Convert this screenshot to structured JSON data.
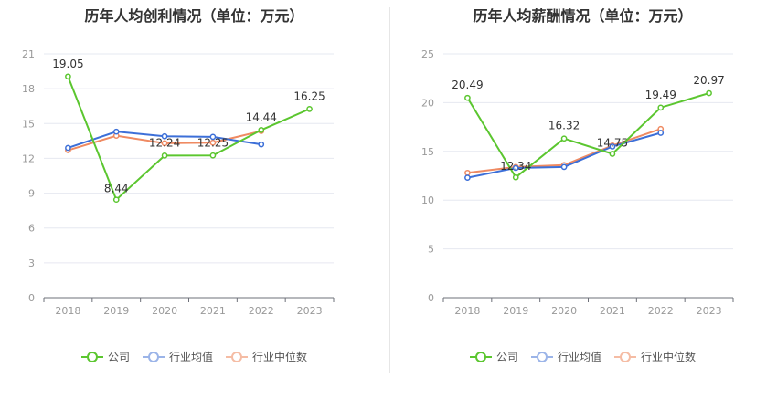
{
  "legend": [
    {
      "label": "公司",
      "color": "#5bc62f"
    },
    {
      "label": "行业均值",
      "color": "#3c6fd8"
    },
    {
      "label": "行业中位数",
      "color": "#ef8a62"
    }
  ],
  "chart_data": [
    {
      "type": "line",
      "title": "历年人均创利情况（单位：万元）",
      "categories": [
        "2018",
        "2019",
        "2020",
        "2021",
        "2022",
        "2023"
      ],
      "yticks": [
        "0",
        "3",
        "6",
        "9",
        "12",
        "15",
        "18",
        "21"
      ],
      "ylim": [
        0,
        21
      ],
      "grid": true,
      "legend_position": "bottom",
      "series": [
        {
          "name": "公司",
          "color": "#5bc62f",
          "values": [
            19.05,
            8.44,
            12.24,
            12.25,
            14.44,
            16.25
          ],
          "labels": [
            "19.05",
            "8.44",
            "12.24",
            "12.25",
            "14.44",
            "16.25"
          ]
        },
        {
          "name": "行业均值",
          "color": "#3c6fd8",
          "values": [
            12.9,
            14.3,
            13.9,
            13.85,
            13.2,
            null
          ]
        },
        {
          "name": "行业中位数",
          "color": "#ef8a62",
          "values": [
            12.7,
            13.95,
            13.3,
            13.35,
            14.35,
            null
          ]
        }
      ]
    },
    {
      "type": "line",
      "title": "历年人均薪酬情况（单位：万元）",
      "categories": [
        "2018",
        "2019",
        "2020",
        "2021",
        "2022",
        "2023"
      ],
      "yticks": [
        "0",
        "5",
        "10",
        "15",
        "20",
        "25"
      ],
      "ylim": [
        0,
        25
      ],
      "grid": true,
      "legend_position": "bottom",
      "series": [
        {
          "name": "公司",
          "color": "#5bc62f",
          "values": [
            20.49,
            12.34,
            16.32,
            14.75,
            19.49,
            20.97
          ],
          "labels": [
            "20.49",
            "12.34",
            "16.32",
            "14.75",
            "19.49",
            "20.97"
          ]
        },
        {
          "name": "行业均值",
          "color": "#3c6fd8",
          "values": [
            12.3,
            13.3,
            13.4,
            15.5,
            16.9,
            null
          ]
        },
        {
          "name": "行业中位数",
          "color": "#ef8a62",
          "values": [
            12.8,
            13.4,
            13.6,
            15.6,
            17.3,
            null
          ]
        }
      ]
    }
  ]
}
